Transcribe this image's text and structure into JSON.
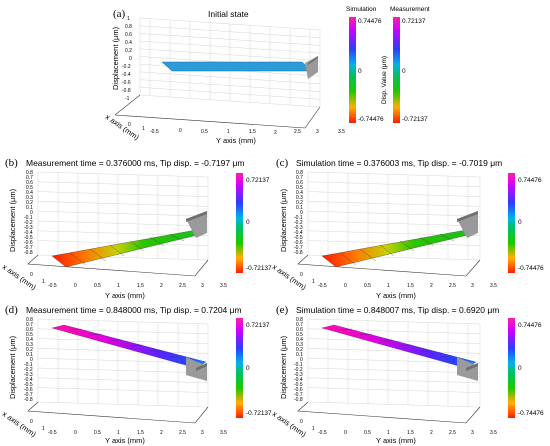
{
  "panels": [
    {
      "label": "(a)",
      "title": "Initial state",
      "y_axis_label": "Displacement (μm)",
      "x_axis_label": "x axis (mm)",
      "horiz_axis_label": "Y axis (mm)",
      "disp_ticks": [
        "1",
        "0.8",
        "0.6",
        "0.4",
        "0.2",
        "0",
        "-0.2",
        "-0.4",
        "-0.6",
        "-0.8",
        "-1"
      ],
      "y_ticks": [
        "-0.5",
        "0",
        "0.5",
        "1",
        "1.5",
        "2",
        "2.5",
        "3",
        "3.5"
      ],
      "x_ticks": [
        "1",
        "0"
      ]
    },
    {
      "label": "(b)",
      "title": "Measurement time = 0.376000 ms, Tip disp. = -0.7197 μm",
      "y_axis_label": "Displacement (μm)",
      "x_axis_label": "x axis (mm)",
      "horiz_axis_label": "Y axis (mm)",
      "disp_ticks": [
        "0.8",
        "0.7",
        "0.6",
        "0.5",
        "0.4",
        "0.3",
        "0.2",
        "0.1",
        "0",
        "-0.1",
        "-0.2",
        "-0.3",
        "-0.4",
        "-0.5",
        "-0.6",
        "-0.7",
        "-0.8"
      ],
      "y_ticks": [
        "-0.5",
        "0",
        "0.5",
        "1",
        "1.5",
        "2",
        "2.5",
        "3",
        "3.5"
      ],
      "x_ticks": [
        "1",
        "0"
      ],
      "colorbar": {
        "max": "0.72137",
        "mid": "0",
        "min": "-0.72137"
      }
    },
    {
      "label": "(c)",
      "title": "Simulation time = 0.376003 ms, Tip disp. = -0.7019 μm",
      "y_axis_label": "Displacement (μm)",
      "x_axis_label": "x axis (mm)",
      "horiz_axis_label": "Y axis (mm)",
      "disp_ticks": [
        "0.8",
        "0.7",
        "0.6",
        "0.5",
        "0.4",
        "0.3",
        "0.2",
        "0.1",
        "0",
        "-0.1",
        "-0.2",
        "-0.3",
        "-0.4",
        "-0.5",
        "-0.6",
        "-0.7",
        "-0.8"
      ],
      "y_ticks": [
        "-0.5",
        "0",
        "0.5",
        "1",
        "1.5",
        "2",
        "2.5",
        "3",
        "3.5"
      ],
      "x_ticks": [
        "1",
        "0"
      ],
      "colorbar": {
        "max": "0.74476",
        "mid": "0",
        "min": "-0.74476"
      }
    },
    {
      "label": "(d)",
      "title": "Measurement time = 0.848000 ms, Tip disp. = 0.7204 μm",
      "y_axis_label": "Displacement (μm)",
      "x_axis_label": "x axis (mm)",
      "horiz_axis_label": "Y axis (mm)",
      "disp_ticks": [
        "0.8",
        "0.7",
        "0.6",
        "0.5",
        "0.4",
        "0.3",
        "0.2",
        "0.1",
        "0",
        "-0.1",
        "-0.2",
        "-0.3",
        "-0.4",
        "-0.5",
        "-0.6",
        "-0.7",
        "-0.8"
      ],
      "y_ticks": [
        "-0.5",
        "0",
        "0.5",
        "1",
        "1.5",
        "2",
        "2.5",
        "3",
        "3.5"
      ],
      "x_ticks": [
        "1",
        "0"
      ],
      "colorbar": {
        "max": "0.72137",
        "mid": "0",
        "min": "-0.72137"
      }
    },
    {
      "label": "(e)",
      "title": "Simulation time = 0.848007 ms, Tip disp. = 0.6920 μm",
      "y_axis_label": "Displacement (μm)",
      "x_axis_label": "x axis (mm)",
      "horiz_axis_label": "Y axis (mm)",
      "disp_ticks": [
        "0.8",
        "0.7",
        "0.6",
        "0.5",
        "0.4",
        "0.3",
        "0.2",
        "0.1",
        "0",
        "-0.1",
        "-0.2",
        "-0.3",
        "-0.4",
        "-0.5",
        "-0.6",
        "-0.7",
        "-0.8"
      ],
      "y_ticks": [
        "-0.5",
        "0",
        "0.5",
        "1",
        "1.5",
        "2",
        "2.5",
        "3",
        "3.5"
      ],
      "x_ticks": [
        "1",
        "0"
      ],
      "colorbar": {
        "max": "0.74476",
        "mid": "0",
        "min": "-0.74476"
      }
    }
  ],
  "legend_a": {
    "simulation_label": "Simulation",
    "measurement_label": "Measurement",
    "disp_value_label": "Disp. Value (μm)",
    "simulation_max": "0.74476",
    "simulation_mid": "0",
    "simulation_min": "-0.74476",
    "measurement_max": "0.72137",
    "measurement_mid": "0",
    "measurement_min": "-0.72137"
  },
  "colors": {
    "colormap": [
      "#ff00ff",
      "#4a2bff",
      "#00a8ff",
      "#00c800",
      "#ffc000",
      "#ff2000"
    ],
    "flat_plate": "#2c9bd8",
    "clamp": "#8c8c8c"
  }
}
